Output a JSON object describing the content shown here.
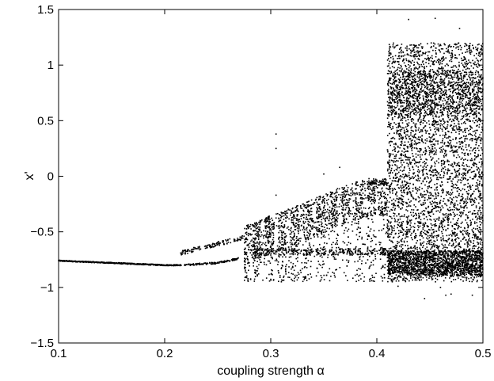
{
  "chart_data": {
    "type": "scatter",
    "title": "",
    "xlabel": "coupling strength α",
    "ylabel": "x'",
    "xlim": [
      0.1,
      0.5
    ],
    "ylim": [
      -1.5,
      1.5
    ],
    "xticks": [
      0.1,
      0.2,
      0.3,
      0.4,
      0.5
    ],
    "xtick_labels": [
      "0.1",
      "0.2",
      "0.3",
      "0.4",
      "0.5"
    ],
    "yticks": [
      -1.5,
      -1,
      -0.5,
      0,
      0.5,
      1,
      1.5
    ],
    "ytick_labels": [
      "−1.5",
      "−1",
      "−0.5",
      "0",
      "0.5",
      "1",
      "1.5"
    ],
    "grid": false,
    "legend": "none",
    "marker_color": "#000000",
    "regions": [
      {
        "description": "single fixed branch",
        "x_range": [
          0.1,
          0.215
        ],
        "y_at": [
          [
            0.1,
            -0.76
          ],
          [
            0.15,
            -0.78
          ],
          [
            0.2,
            -0.8
          ],
          [
            0.215,
            -0.8
          ]
        ]
      },
      {
        "description": "lower branch continues",
        "x_range": [
          0.215,
          0.27
        ],
        "y_at": [
          [
            0.215,
            -0.8
          ],
          [
            0.25,
            -0.78
          ],
          [
            0.27,
            -0.74
          ]
        ]
      },
      {
        "description": "upper branch emerges",
        "x_range": [
          0.215,
          0.275
        ],
        "y_at": [
          [
            0.215,
            -0.69
          ],
          [
            0.245,
            -0.62
          ],
          [
            0.275,
            -0.55
          ]
        ]
      },
      {
        "description": "banded chaotic region",
        "x_range": [
          0.275,
          0.41
        ],
        "y_low": -0.95,
        "y_high_at": [
          [
            0.275,
            -0.45
          ],
          [
            0.3,
            -0.35
          ],
          [
            0.33,
            -0.25
          ],
          [
            0.36,
            -0.12
          ],
          [
            0.39,
            -0.02
          ],
          [
            0.41,
            0.0
          ]
        ]
      },
      {
        "description": "fully chaotic region",
        "x_range": [
          0.41,
          0.5
        ],
        "y_range": [
          -0.95,
          1.2
        ]
      }
    ],
    "outliers": [
      {
        "x": 0.305,
        "y": 0.38
      },
      {
        "x": 0.305,
        "y": 0.25
      },
      {
        "x": 0.305,
        "y": -0.17
      },
      {
        "x": 0.35,
        "y": 0.02
      },
      {
        "x": 0.365,
        "y": 0.08
      },
      {
        "x": 0.42,
        "y": -0.99
      },
      {
        "x": 0.43,
        "y": 1.41
      },
      {
        "x": 0.445,
        "y": -1.1
      },
      {
        "x": 0.455,
        "y": 1.42
      },
      {
        "x": 0.465,
        "y": -1.07
      },
      {
        "x": 0.478,
        "y": 1.33
      },
      {
        "x": 0.49,
        "y": -1.07
      },
      {
        "x": 0.46,
        "y": -1.0
      },
      {
        "x": 0.47,
        "y": -1.06
      }
    ]
  }
}
